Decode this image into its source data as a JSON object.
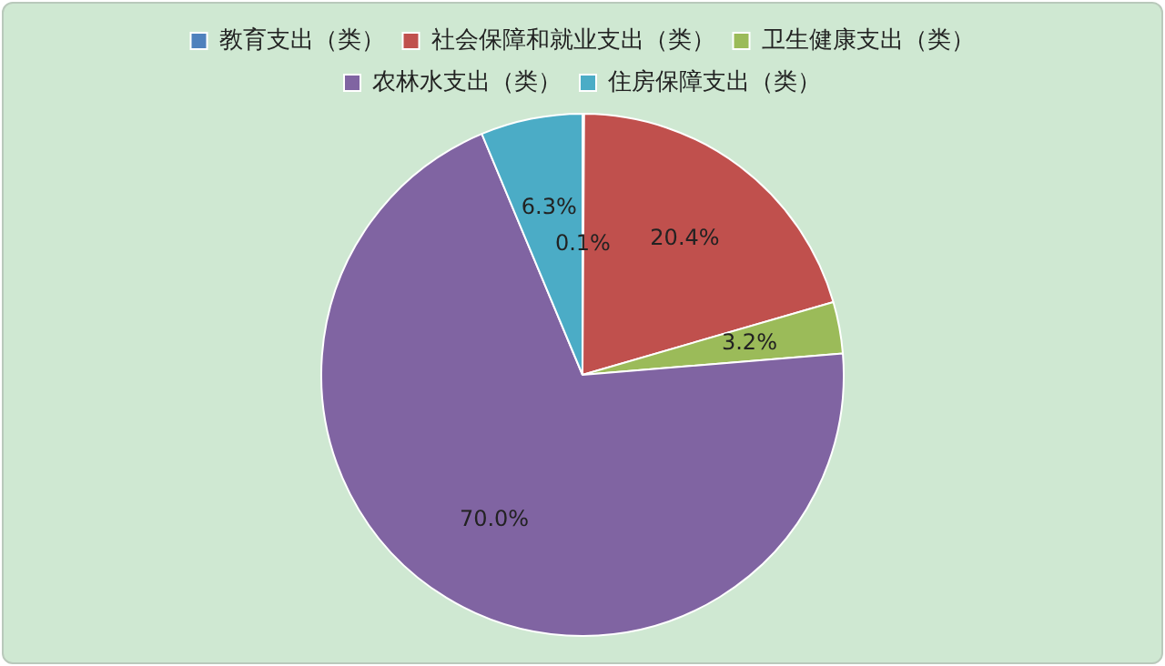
{
  "chart_data": {
    "type": "pie",
    "categories": [
      "教育支出（类）",
      "社会保障和就业支出（类）",
      "卫生健康支出（类）",
      "农林水支出（类）",
      "住房保障支出（类）"
    ],
    "values": [
      0.1,
      20.4,
      3.2,
      70.0,
      6.3
    ],
    "colors": [
      "#4f81bd",
      "#c0504d",
      "#9bbb59",
      "#8064a2",
      "#4bacc6"
    ],
    "value_labels": [
      "0.1%",
      "20.4%",
      "3.2%",
      "70.0%",
      "6.3%"
    ],
    "legend": "top"
  }
}
